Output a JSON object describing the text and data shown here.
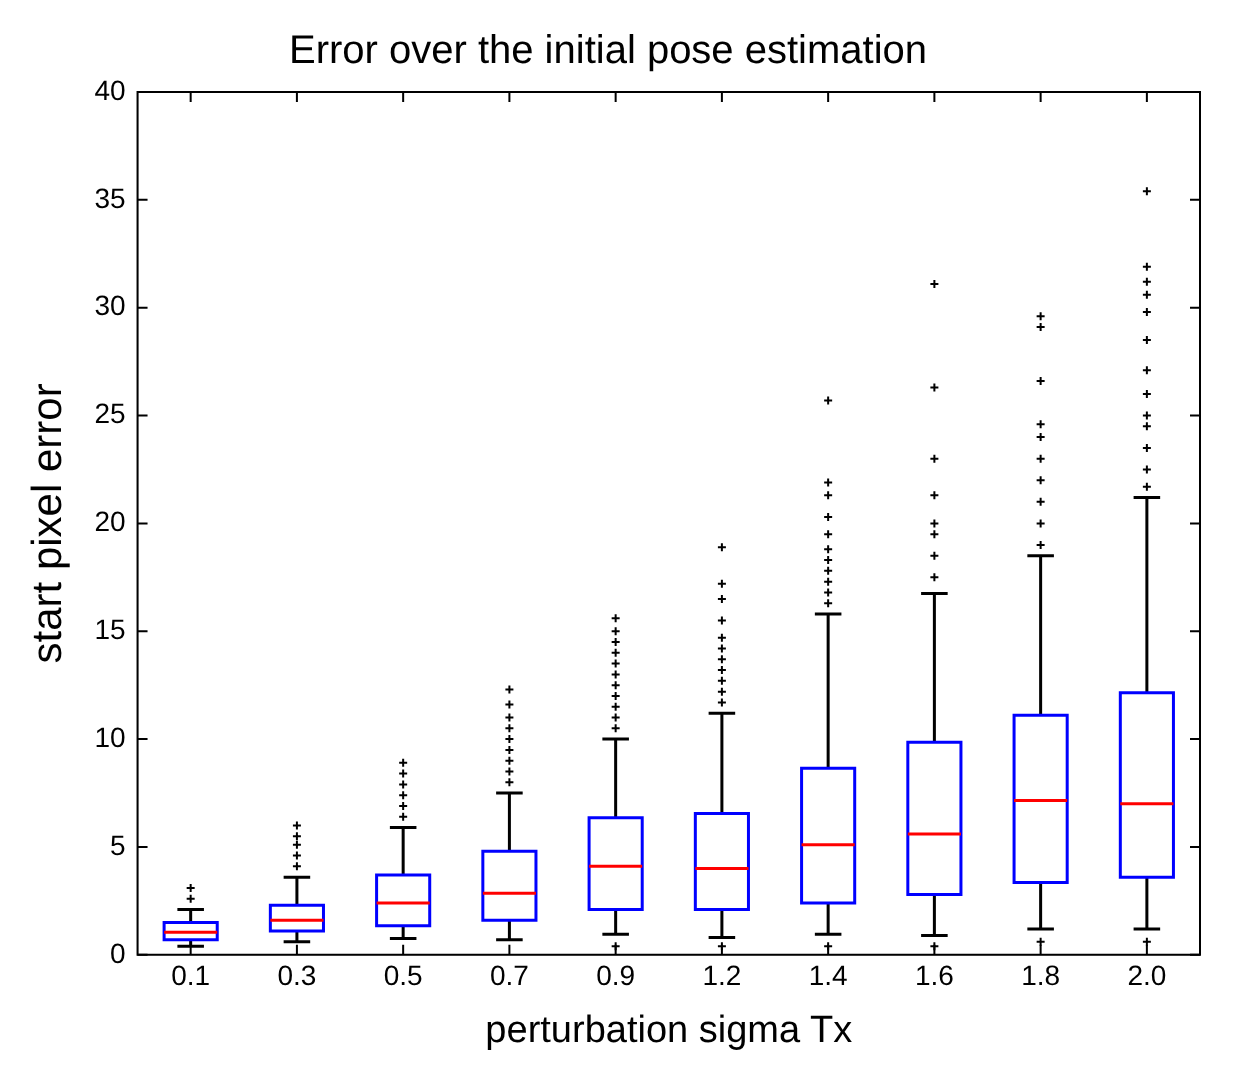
{
  "chart_data": {
    "type": "box",
    "title": "Error over the initial pose estimation",
    "xlabel": "perturbation sigma Tx",
    "ylabel": "start pixel error",
    "categories": [
      "0.1",
      "0.3",
      "0.5",
      "0.7",
      "0.9",
      "1.2",
      "1.4",
      "1.6",
      "1.8",
      "2.0"
    ],
    "ylim": [
      0,
      40
    ],
    "yticks": [
      0,
      5,
      10,
      15,
      20,
      25,
      30,
      35,
      40
    ],
    "grid": false,
    "legend": false,
    "marker": "cross",
    "series": [
      {
        "color": "#0000ff",
        "boxes": [
          {
            "low": 0.4,
            "q1": 0.7,
            "median": 1.05,
            "q3": 1.5,
            "high": 2.1,
            "outliers": [
              2.6,
              3.1
            ]
          },
          {
            "low": 0.6,
            "q1": 1.1,
            "median": 1.6,
            "q3": 2.3,
            "high": 3.6,
            "outliers": [
              4.1,
              4.6,
              5.1,
              5.5,
              6.0
            ]
          },
          {
            "low": 0.75,
            "q1": 1.35,
            "median": 2.4,
            "q3": 3.7,
            "high": 5.9,
            "outliers": [
              6.4,
              6.9,
              7.4,
              7.9,
              8.4,
              8.9
            ]
          },
          {
            "low": 0.7,
            "q1": 1.6,
            "median": 2.85,
            "q3": 4.8,
            "high": 7.5,
            "outliers": [
              8.0,
              8.5,
              9.0,
              9.5,
              10.0,
              10.5,
              11.0,
              11.6,
              12.3
            ]
          },
          {
            "low": 0.95,
            "q1": 2.1,
            "median": 4.1,
            "q3": 6.35,
            "high": 10.0,
            "outliers": [
              10.5,
              11.0,
              11.5,
              12.0,
              12.5,
              13.0,
              13.5,
              14.0,
              14.5,
              15.0,
              15.6,
              0.4
            ]
          },
          {
            "low": 0.8,
            "q1": 2.1,
            "median": 4.0,
            "q3": 6.55,
            "high": 11.2,
            "outliers": [
              11.7,
              12.2,
              12.7,
              13.2,
              13.7,
              14.2,
              14.7,
              15.5,
              16.5,
              17.2,
              18.9,
              0.4
            ]
          },
          {
            "low": 0.95,
            "q1": 2.4,
            "median": 5.1,
            "q3": 8.65,
            "high": 15.8,
            "outliers": [
              16.3,
              16.8,
              17.3,
              17.8,
              18.3,
              18.8,
              19.5,
              20.3,
              21.3,
              21.9,
              25.7,
              0.4
            ]
          },
          {
            "low": 0.9,
            "q1": 2.8,
            "median": 5.6,
            "q3": 9.85,
            "high": 16.75,
            "outliers": [
              17.5,
              18.5,
              19.5,
              20.0,
              21.3,
              23.0,
              26.3,
              31.1,
              0.4
            ]
          },
          {
            "low": 1.2,
            "q1": 3.35,
            "median": 7.15,
            "q3": 11.1,
            "high": 18.5,
            "outliers": [
              19.0,
              20.0,
              21.0,
              22.0,
              23.0,
              24.0,
              24.6,
              26.6,
              29.1,
              29.6,
              0.6
            ]
          },
          {
            "low": 1.2,
            "q1": 3.6,
            "median": 7.0,
            "q3": 12.15,
            "high": 21.2,
            "outliers": [
              21.7,
              22.5,
              23.5,
              24.5,
              25.0,
              26.0,
              27.1,
              28.5,
              29.8,
              30.6,
              31.2,
              31.9,
              35.4,
              0.6
            ]
          }
        ]
      }
    ]
  }
}
